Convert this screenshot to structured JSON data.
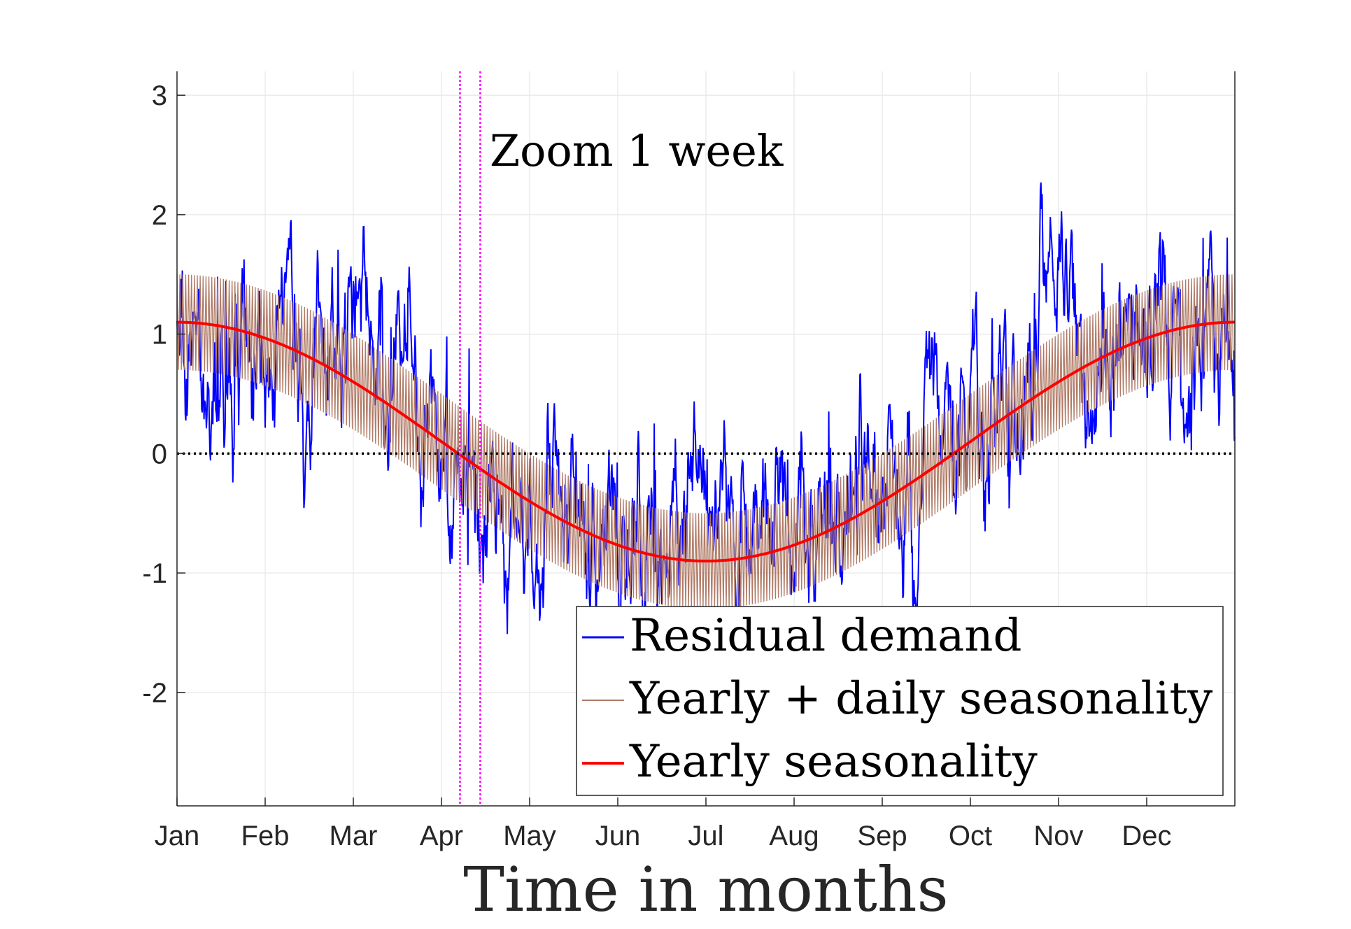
{
  "chart_data": {
    "type": "line",
    "title": "",
    "xlabel": "Time in months",
    "ylabel": "",
    "xlim": [
      0,
      12
    ],
    "ylim": [
      -2.95,
      3.2
    ],
    "grid": true,
    "x_ticks": [
      0,
      1,
      2,
      3,
      4,
      5,
      6,
      7,
      8,
      9,
      10,
      11
    ],
    "x_tick_labels": [
      "Jan",
      "Feb",
      "Mar",
      "Apr",
      "May",
      "Jun",
      "Jul",
      "Aug",
      "Sep",
      "Oct",
      "Nov",
      "Dec"
    ],
    "y_ticks": [
      -2,
      -1,
      0,
      1,
      2,
      3
    ],
    "y_tick_labels": [
      "-2",
      "-1",
      "0",
      "1",
      "2",
      "3"
    ],
    "zero_line": {
      "y": 0,
      "style": "dotted",
      "color": "#000000"
    },
    "zoom_window": {
      "x_start": 3.21,
      "x_end": 3.44,
      "color": "#ff00ff",
      "label": "Zoom 1 week"
    },
    "series": [
      {
        "name": "Residual demand",
        "color": "#0000ff",
        "description": "noisy hourly residual demand",
        "anchor_x": [
          0,
          0.5,
          1,
          1.5,
          2,
          2.3,
          2.7,
          3,
          3.2,
          3.45,
          3.6,
          4,
          4.5,
          5,
          5.5,
          6,
          6.5,
          7,
          7.5,
          8,
          8.5,
          9,
          9.5,
          9.8,
          10,
          10.3,
          10.5,
          11,
          11.5,
          12
        ],
        "anchor_y": [
          0.9,
          0.75,
          0.6,
          0.9,
          1.2,
          1.0,
          0.9,
          0.5,
          0.2,
          -0.9,
          -0.5,
          -0.5,
          -0.6,
          -0.7,
          -0.8,
          -0.5,
          -0.6,
          -1.0,
          -0.6,
          -0.3,
          0.1,
          0.2,
          0.5,
          1.3,
          1.2,
          1.0,
          0.7,
          0.9,
          1.0,
          1.0
        ]
      },
      {
        "name": "Yearly + daily seasonality",
        "color": "#b07a66",
        "description": "yearly cosine plus daily oscillation of amplitude 0.4",
        "daily_amplitude": 0.4
      },
      {
        "name": "Yearly seasonality",
        "color": "#ff0000",
        "description": "yearly cosine: mean 0.1, amplitude 1.0, peak at Jan and end of Dec, minimum near Jul",
        "mean": 0.1,
        "amplitude": 1.0,
        "x": [
          0,
          1,
          2,
          3,
          4,
          5,
          6,
          7,
          8,
          9,
          10,
          11,
          12
        ],
        "values": [
          1.1,
          0.97,
          0.6,
          0.1,
          -0.4,
          -0.77,
          -0.9,
          -0.77,
          -0.4,
          0.1,
          0.6,
          0.97,
          1.1
        ]
      }
    ],
    "legend": {
      "position": "bottom-right",
      "entries": [
        "Residual demand",
        "Yearly + daily seasonality",
        "Yearly seasonality"
      ]
    }
  }
}
